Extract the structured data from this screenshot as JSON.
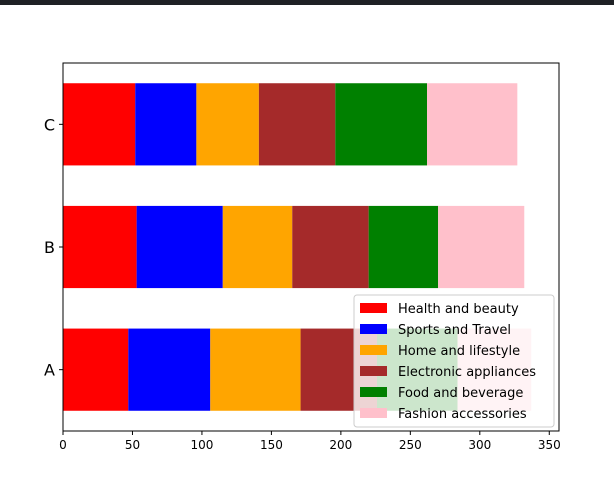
{
  "chart_data": {
    "type": "bar",
    "orientation": "horizontal",
    "stacked": true,
    "categories": [
      "A",
      "B",
      "C"
    ],
    "series": [
      {
        "name": "Health and beauty",
        "color": "#ff0000",
        "values": [
          47,
          53,
          52
        ]
      },
      {
        "name": "Sports and Travel",
        "color": "#0000ff",
        "values": [
          59,
          62,
          44
        ]
      },
      {
        "name": "Home and lifestyle",
        "color": "#ffa500",
        "values": [
          65,
          50,
          45
        ]
      },
      {
        "name": "Electronic appliances",
        "color": "#a52a2a",
        "values": [
          55,
          55,
          55
        ]
      },
      {
        "name": "Food and beverage",
        "color": "#008000",
        "values": [
          58,
          50,
          66
        ]
      },
      {
        "name": "Fashion accessories",
        "color": "#ffc0cb",
        "values": [
          53,
          62,
          65
        ]
      }
    ],
    "xlim": [
      0,
      357
    ],
    "xticks": [
      "0",
      "50",
      "100",
      "150",
      "200",
      "250",
      "300",
      "350"
    ],
    "xtick_values": [
      0,
      50,
      100,
      150,
      200,
      250,
      300,
      350
    ],
    "legend_position": "lower-right",
    "grid": false
  }
}
